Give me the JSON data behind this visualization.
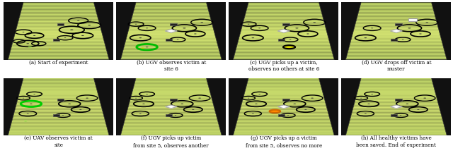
{
  "figsize": [
    6.4,
    2.17
  ],
  "dpi": 100,
  "ncols": 4,
  "nrows": 2,
  "captions": [
    "(a) Start of experiment",
    "(b) UGV observes victim at\nsite 6",
    "(c) UGV picks up a victim,\nobserves no others at site 6",
    "(d) UGV drops off victim at\nmuster",
    "(e) UAV observes victim at\nsite",
    "(f) UGV picks up victim\nfrom site 5, observes another",
    "(g) UGV picks up a victim\nfrom site 5, observes no more",
    "(h) All healthy victims have\nbeen saved. End of experiment"
  ],
  "caption_fontsize": 5.2,
  "background_color": "#ffffff"
}
